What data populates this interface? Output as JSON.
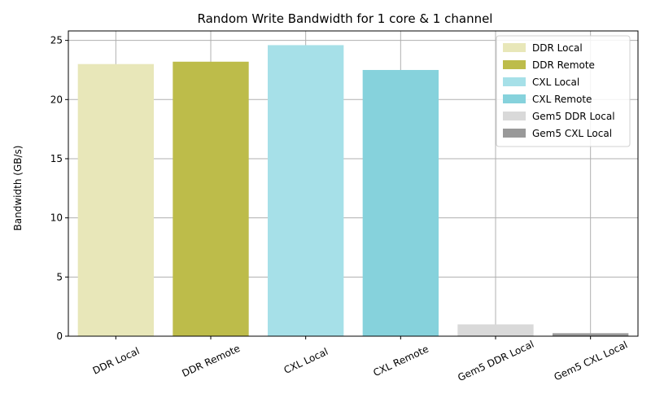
{
  "chart_data": {
    "type": "bar",
    "title": "Random Write Bandwidth for 1 core & 1 channel",
    "xlabel": "",
    "ylabel": "Bandwidth (GB/s)",
    "categories": [
      "DDR Local",
      "DDR Remote",
      "CXL Local",
      "CXL Remote",
      "Gem5 DDR Local",
      "Gem5 CXL Local"
    ],
    "values": [
      23.0,
      23.2,
      24.6,
      22.5,
      1.0,
      0.25
    ],
    "colors": [
      "#e8e7b9",
      "#bdbc4a",
      "#a6e0e8",
      "#86d2dc",
      "#d9d9d9",
      "#999999"
    ],
    "ylim": [
      0,
      25.8
    ],
    "yticks": [
      0,
      5,
      10,
      15,
      20,
      25
    ],
    "grid": true,
    "legend": {
      "position": "top-right",
      "entries": [
        "DDR Local",
        "DDR Remote",
        "CXL Local",
        "CXL Remote",
        "Gem5 DDR Local",
        "Gem5 CXL Local"
      ]
    }
  }
}
